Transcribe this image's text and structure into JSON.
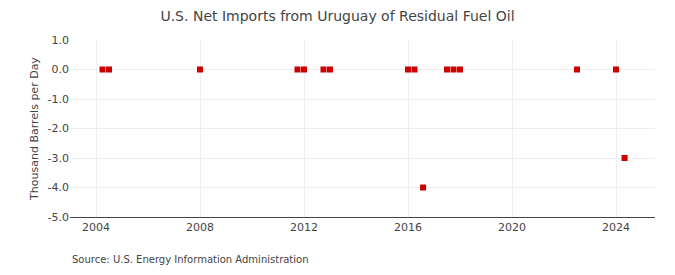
{
  "chart_data": {
    "type": "scatter",
    "title": "U.S. Net Imports from Uruguay of Residual Fuel Oil",
    "ylabel": "Thousand Barrels per Day",
    "annotations": [
      "Source: U.S. Energy Information Administration"
    ],
    "x": [
      2004.25,
      2004.5,
      2008.0,
      2011.75,
      2012.0,
      2012.75,
      2013.0,
      2016.0,
      2016.25,
      2017.5,
      2017.75,
      2018.0,
      2022.5,
      2024.0,
      2016.58,
      2024.33
    ],
    "values": [
      0,
      0,
      0,
      0,
      0,
      0,
      0,
      0,
      0,
      0,
      0,
      0,
      0,
      0,
      -4.0,
      -3.0
    ],
    "color": "#cc0000",
    "marker": "square",
    "xlim": [
      2003.0,
      2025.5
    ],
    "xticks": [
      2004,
      2008,
      2012,
      2016,
      2020,
      2024
    ],
    "ylim": [
      -5.0,
      1.0
    ],
    "yticks": [
      {
        "value": 1.0,
        "label": "1.0"
      },
      {
        "value": 0.0,
        "label": "0.0"
      },
      {
        "value": -1.0,
        "label": "-1.0"
      },
      {
        "value": -2.0,
        "label": "-2.0"
      },
      {
        "value": -3.0,
        "label": "-3.0"
      },
      {
        "value": -4.0,
        "label": "-4.0"
      },
      {
        "value": -5.0,
        "label": "-5.0"
      }
    ],
    "grid": true
  }
}
